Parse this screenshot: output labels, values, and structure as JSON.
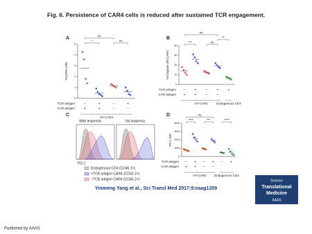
{
  "header": {
    "title": "Fig. 6. Persistence of CAR4 cells is reduced after sustained TCR engagement."
  },
  "chart_data": [
    {
      "type": "strip",
      "panel": "A",
      "ylabel": "%CAR4 cells",
      "ylim": [
        0,
        5
      ],
      "yticks": [
        0,
        1,
        2,
        3,
        4,
        5
      ],
      "series": [
        {
          "color": "#d9534f",
          "values": [
            4.3,
            3.6,
            1.8,
            1.4
          ]
        },
        {
          "color": "#3b5bdb",
          "values": [
            0.9,
            0.6,
            0.4,
            0.3,
            0.2
          ]
        },
        {
          "color": "#d9534f",
          "values": [
            1.3,
            1.2,
            1.1,
            1.0
          ]
        },
        {
          "color": "#3b5bdb",
          "values": [
            1.0,
            0.7,
            0.4,
            0.3
          ]
        }
      ],
      "rows": [
        {
          "label": "TCR antigen",
          "signs": [
            "−",
            "+",
            "−",
            "+"
          ]
        },
        {
          "label": "CAR antigen",
          "signs": [
            "+",
            "+",
            "−",
            "−"
          ]
        }
      ],
      "groups": [
        {
          "label": "HY-CAR4",
          "from": 0,
          "to": 3
        }
      ],
      "brackets": [
        {
          "text": "*",
          "from": 0,
          "to": 1
        },
        {
          "text": "ns",
          "from": 2,
          "to": 3
        },
        {
          "text": "ns",
          "from": 0,
          "to": 2
        }
      ]
    },
    {
      "type": "strip",
      "panel": "B",
      "ylabel": "%Caspase 3hi CAR4",
      "ylim": [
        0,
        40
      ],
      "yticks": [
        0,
        10,
        20,
        30,
        40
      ],
      "series": [
        {
          "color": "#d9534f",
          "values": [
            18,
            15,
            12,
            10
          ]
        },
        {
          "color": "#3b5bdb",
          "values": [
            31,
            28,
            24,
            22
          ]
        },
        {
          "color": "#d9534f",
          "values": [
            14,
            13,
            12,
            11
          ]
        },
        {
          "color": "#3b5bdb",
          "values": [
            22,
            20,
            18,
            17
          ]
        },
        {
          "color": "#2f9e44",
          "values": [
            8,
            7,
            6,
            5
          ]
        }
      ],
      "rows": [
        {
          "label": "TCR antigen",
          "signs": [
            "−",
            "+",
            "−",
            "+",
            "+"
          ]
        },
        {
          "label": "CAR antigen",
          "signs": [
            "+",
            "+",
            "−",
            "−",
            null
          ]
        }
      ],
      "groups": [
        {
          "label": "HY-CAR4",
          "from": 0,
          "to": 3
        },
        {
          "label": "Endogenous CD4",
          "from": 4,
          "to": 4
        }
      ],
      "brackets": [
        {
          "text": "***",
          "from": 0,
          "to": 1
        },
        {
          "text": "ns",
          "from": 2,
          "to": 3
        },
        {
          "text": "**",
          "from": 3,
          "to": 4
        },
        {
          "text": "ns",
          "from": 0,
          "to": 3
        }
      ]
    },
    {
      "type": "strip",
      "panel": "D",
      "ylabel": "PD-1 MFI",
      "ylim": [
        0,
        4000
      ],
      "yticks": [
        0,
        1000,
        2000,
        3000,
        4000
      ],
      "series": [
        {
          "color": "#e8590c",
          "values": [
            900,
            800,
            700,
            650
          ]
        },
        {
          "color": "#7048e8",
          "values": [
            2700,
            2300,
            2000,
            1800
          ]
        },
        {
          "color": "#e8590c",
          "values": [
            1000,
            900,
            850
          ]
        },
        {
          "color": "#7048e8",
          "values": [
            2100,
            1900,
            1700
          ]
        },
        {
          "color": "#2f9e44",
          "values": [
            500,
            450,
            400
          ]
        },
        {
          "color": "#2f9e44",
          "values": [
            900,
            600,
            300,
            200
          ]
        }
      ],
      "rows": [
        {
          "label": "TCR antigen",
          "signs": [
            "−",
            "+",
            "−",
            "+",
            "−",
            "+"
          ]
        },
        {
          "label": "CAR antigen",
          "signs": [
            "+",
            "+",
            "−",
            "−",
            null,
            null
          ]
        }
      ],
      "groups": [
        {
          "label": "HY-CAR4",
          "from": 0,
          "to": 3
        },
        {
          "label": "Endogenous CD4",
          "from": 4,
          "to": 5
        }
      ],
      "brackets": [
        {
          "text": "****",
          "from": 0,
          "to": 1
        },
        {
          "text": "***",
          "from": 2,
          "to": 3
        },
        {
          "text": "****",
          "from": 4,
          "to": 5
        },
        {
          "text": "ns",
          "from": 0,
          "to": 3
        }
      ]
    }
  ],
  "panel_c": {
    "label": "C",
    "left": "With leukemia",
    "right": "No leukemia",
    "xlabel": "PD-1",
    "legend": [
      "Endogenous CD4 (CD45.1+)",
      "+TCR antigen CAR4 (CD45.2+)",
      "−TCR antigen CAR4 (CD45.2+)"
    ]
  },
  "citation": "Yinmeng Yang et al., Sci Transl Med 2017;9:eaag1209",
  "logo": {
    "line1": "Science",
    "line2": "Translational",
    "line3": "Medicine",
    "line4": "AAAS"
  },
  "footer": "Published by AAAS"
}
